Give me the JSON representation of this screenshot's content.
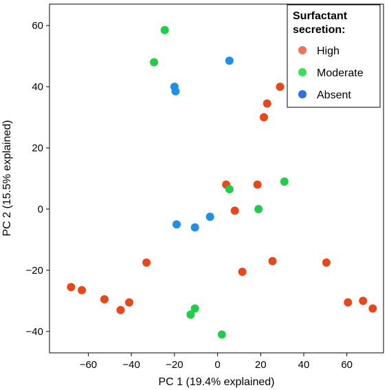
{
  "chart_data": {
    "type": "scatter",
    "title": "",
    "xlabel": "PC 1 (19.4% explained)",
    "ylabel": "PC 2 (15.5% explained)",
    "xlim": [
      -78,
      77
    ],
    "ylim": [
      -47,
      67
    ],
    "xticks": [
      -60,
      -40,
      -20,
      0,
      20,
      40,
      60
    ],
    "yticks": [
      -40,
      -20,
      0,
      20,
      40,
      60
    ],
    "legend": {
      "title": "Surfactant secretion:",
      "position": "top-right"
    },
    "series": [
      {
        "name": "High",
        "color": "#e8471c",
        "legend_color": "#f0735a",
        "points": [
          [
            29,
            40
          ],
          [
            23,
            34.5
          ],
          [
            21.5,
            30
          ],
          [
            4,
            8
          ],
          [
            18.5,
            8
          ],
          [
            8,
            -0.5
          ],
          [
            -33,
            -17.5
          ],
          [
            11.5,
            -20.5
          ],
          [
            25.5,
            -17
          ],
          [
            50.5,
            -17.5
          ],
          [
            -68,
            -25.5
          ],
          [
            -63,
            -26.5
          ],
          [
            -52.5,
            -29.5
          ],
          [
            -41,
            -30.5
          ],
          [
            -45,
            -33
          ],
          [
            60.5,
            -30.5
          ],
          [
            67.5,
            -30
          ],
          [
            72,
            -32.5
          ]
        ]
      },
      {
        "name": "Moderate",
        "color": "#22cc4a",
        "legend_color": "#3ddc5a",
        "points": [
          [
            -24.5,
            58.5
          ],
          [
            -29.5,
            48
          ],
          [
            5.5,
            6.5
          ],
          [
            31,
            9
          ],
          [
            19,
            0
          ],
          [
            -10.5,
            -32.5
          ],
          [
            -12.5,
            -34.5
          ],
          [
            2,
            -41
          ]
        ]
      },
      {
        "name": "Absent",
        "color": "#1f8fe8",
        "legend_color": "#2f6fe0",
        "points": [
          [
            5.5,
            48.5
          ],
          [
            -20,
            40
          ],
          [
            -19.5,
            38.5
          ],
          [
            -19,
            -5
          ],
          [
            -10.5,
            -6
          ],
          [
            -3.5,
            -2.5
          ]
        ]
      }
    ]
  }
}
